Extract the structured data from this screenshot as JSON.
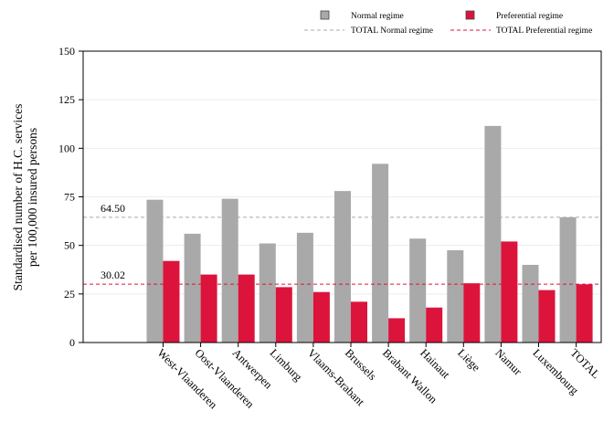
{
  "chart_data": {
    "type": "bar",
    "title": "",
    "ylabel_lines": [
      "Standardised number of H.C. services",
      "per 100,000 insured persons"
    ],
    "xlabel": "",
    "ylim": [
      0,
      150
    ],
    "yticks": [
      0,
      25,
      50,
      75,
      100,
      125,
      150
    ],
    "grid": true,
    "legend_position": "top-right",
    "categories": [
      "West-Vlaanderen",
      "Oost-Vlaanderen",
      "Antwerpen",
      "Limburg",
      "Vlaams-Brabant",
      "Brussels",
      "Brabant Wallon",
      "Hainaut",
      "Liège",
      "Namur",
      "Luxembourg",
      "TOTAL"
    ],
    "series": [
      {
        "name": "Normal regime",
        "color": "#a9a9a9",
        "values": [
          73.5,
          56,
          74,
          51,
          56.5,
          78,
          92,
          53.5,
          47.5,
          111.5,
          40,
          64.5
        ]
      },
      {
        "name": "Preferential regime",
        "color": "#dc143c",
        "values": [
          42,
          35,
          35,
          28.5,
          26,
          21,
          12.5,
          18,
          30.5,
          52,
          27,
          30
        ]
      }
    ],
    "reference_lines": [
      {
        "name": "TOTAL Normal regime",
        "value": 64.5,
        "label": "64.50",
        "color": "#a9a9a9"
      },
      {
        "name": "TOTAL Preferential regime",
        "value": 30.02,
        "label": "30.02",
        "color": "#dc143c"
      }
    ]
  }
}
